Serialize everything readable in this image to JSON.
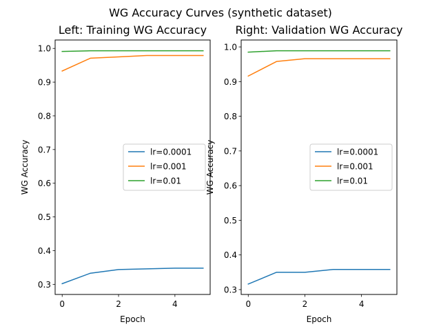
{
  "suptitle": "WG Accuracy Curves (synthetic dataset)",
  "legend_labels": [
    "lr=0.0001",
    "lr=0.001",
    "lr=0.01"
  ],
  "series_colors": [
    "#1f77b4",
    "#ff7f0e",
    "#2ca02c"
  ],
  "chart_data": [
    {
      "type": "line",
      "title": "Left: Training WG Accuracy",
      "xlabel": "Epoch",
      "ylabel": "WG Accuracy",
      "x": [
        0,
        1,
        2,
        3,
        4,
        5
      ],
      "xlim": [
        -0.25,
        5.25
      ],
      "ylim": [
        0.27,
        1.025
      ],
      "xticks": [
        0,
        2,
        4
      ],
      "yticks": [
        0.3,
        0.4,
        0.5,
        0.6,
        0.7,
        0.8,
        0.9,
        1.0
      ],
      "ytick_labels": [
        "0.3",
        "0.4",
        "0.5",
        "0.6",
        "0.7",
        "0.8",
        "0.9",
        "1.0"
      ],
      "legend_position": "center-right",
      "grid": false,
      "series": [
        {
          "name": "lr=0.0001",
          "values": [
            0.302,
            0.333,
            0.344,
            0.346,
            0.348,
            0.348
          ]
        },
        {
          "name": "lr=0.001",
          "values": [
            0.933,
            0.971,
            0.975,
            0.979,
            0.979,
            0.979
          ]
        },
        {
          "name": "lr=0.01",
          "values": [
            0.991,
            0.993,
            0.993,
            0.993,
            0.993,
            0.993
          ]
        }
      ]
    },
    {
      "type": "line",
      "title": "Right: Validation WG Accuracy",
      "xlabel": "Epoch",
      "ylabel": "WG Accuracy",
      "x": [
        0,
        1,
        2,
        3,
        4,
        5
      ],
      "xlim": [
        -0.25,
        5.25
      ],
      "ylim": [
        0.286,
        1.02
      ],
      "xticks": [
        0,
        2,
        4
      ],
      "yticks": [
        0.3,
        0.4,
        0.5,
        0.6,
        0.7,
        0.8,
        0.9,
        1.0
      ],
      "ytick_labels": [
        "0.3",
        "0.4",
        "0.5",
        "0.6",
        "0.7",
        "0.8",
        "0.9",
        "1.0"
      ],
      "legend_position": "center-right",
      "grid": false,
      "series": [
        {
          "name": "lr=0.0001",
          "values": [
            0.316,
            0.35,
            0.35,
            0.358,
            0.358,
            0.358
          ]
        },
        {
          "name": "lr=0.001",
          "values": [
            0.916,
            0.958,
            0.966,
            0.966,
            0.966,
            0.966
          ]
        },
        {
          "name": "lr=0.01",
          "values": [
            0.985,
            0.989,
            0.989,
            0.989,
            0.989,
            0.989
          ]
        }
      ]
    }
  ]
}
